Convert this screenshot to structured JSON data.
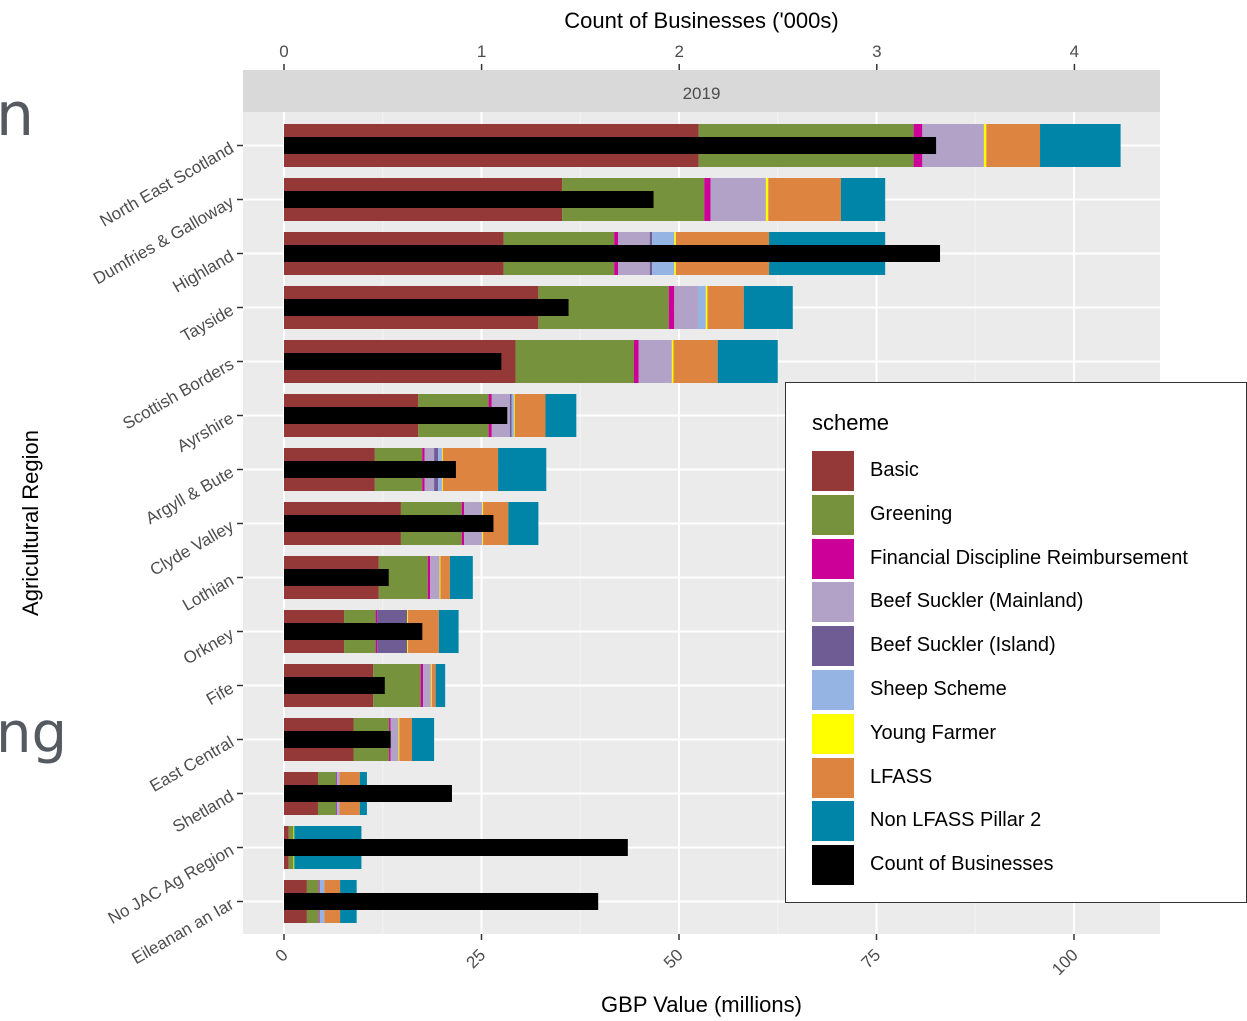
{
  "side_text": {
    "top_fragment": "n",
    "bottom_fragment": "ng"
  },
  "chart_data": {
    "type": "bar",
    "orientation": "horizontal-stacked",
    "facet_label": "2019",
    "xlabel": "GBP Value (millions)",
    "top_axis_label": "Count of Businesses ('000s)",
    "ylabel": "Agricultural Region",
    "xlim": [
      0,
      110
    ],
    "top_axis_lim": [
      0,
      4.4
    ],
    "xticks": [
      "0",
      "25",
      "50",
      "75",
      "100"
    ],
    "top_ticks": [
      "0",
      "1",
      "2",
      "3",
      "4"
    ],
    "grid": true,
    "legend_position": "right",
    "legend_title": "scheme",
    "categories": [
      "North East Scotland",
      "Dumfries & Galloway",
      "Highland",
      "Tayside",
      "Scottish Borders",
      "Ayrshire",
      "Argyll & Bute",
      "Clyde Valley",
      "Lothian",
      "Orkney",
      "Fife",
      "East Central",
      "Shetland",
      "No JAC Ag Region",
      "Eileanan an Iar"
    ],
    "series": [
      {
        "name": "Basic",
        "color": "#943838",
        "values": [
          52.5,
          35.2,
          27.8,
          32.2,
          29.3,
          17.0,
          11.5,
          14.8,
          12.0,
          7.6,
          11.3,
          8.8,
          4.3,
          0.6,
          2.9
        ]
      },
      {
        "name": "Greening",
        "color": "#77923c",
        "values": [
          27.2,
          18.0,
          14.0,
          16.5,
          15.0,
          8.9,
          6.0,
          7.7,
          6.2,
          4.0,
          6.0,
          4.5,
          2.3,
          0.6,
          1.5
        ]
      },
      {
        "name": "Financial Discipline Reimbursement",
        "color": "#cc0099",
        "values": [
          1.1,
          0.8,
          0.5,
          0.7,
          0.6,
          0.4,
          0.3,
          0.3,
          0.3,
          0.2,
          0.3,
          0.2,
          0.1,
          0.0,
          0.1
        ]
      },
      {
        "name": "Beef Suckler (Mainland)",
        "color": "#b3a2c7",
        "values": [
          7.8,
          7.0,
          4.0,
          3.0,
          4.2,
          2.3,
          1.2,
          2.3,
          1.2,
          0.0,
          1.0,
          1.0,
          0.0,
          0.0,
          0.0
        ]
      },
      {
        "name": "Beef Suckler (Island)",
        "color": "#705c94",
        "values": [
          0.0,
          0.0,
          0.3,
          0.0,
          0.0,
          0.2,
          0.5,
          0.0,
          0.0,
          3.8,
          0.0,
          0.0,
          0.0,
          0.0,
          0.0
        ]
      },
      {
        "name": "Sheep Scheme",
        "color": "#95b3e3",
        "values": [
          0.0,
          0.0,
          2.8,
          1.0,
          0.0,
          0.3,
          0.5,
          0.0,
          0.0,
          0.0,
          0.0,
          0.0,
          0.3,
          0.0,
          0.6
        ]
      },
      {
        "name": "Young Farmer",
        "color": "#ffff00",
        "values": [
          0.3,
          0.3,
          0.2,
          0.2,
          0.2,
          0.1,
          0.1,
          0.1,
          0.1,
          0.1,
          0.1,
          0.1,
          0.0,
          0.1,
          0.0
        ]
      },
      {
        "name": "LFASS",
        "color": "#dd8540",
        "values": [
          6.8,
          9.2,
          11.8,
          4.6,
          5.6,
          3.9,
          7.0,
          3.2,
          1.2,
          3.9,
          0.5,
          1.6,
          2.6,
          0.0,
          2.0
        ]
      },
      {
        "name": "Non LFASS Pillar 2",
        "color": "#0085a8",
        "values": [
          10.2,
          5.6,
          14.7,
          6.2,
          7.6,
          3.9,
          6.1,
          3.8,
          2.9,
          2.5,
          1.2,
          2.8,
          0.9,
          8.5,
          2.1
        ]
      }
    ],
    "count_series": {
      "name": "Count of Businesses",
      "color": "#000000",
      "values": [
        3.3,
        1.87,
        3.32,
        1.44,
        1.1,
        1.13,
        0.87,
        1.06,
        0.53,
        0.7,
        0.51,
        0.54,
        0.85,
        1.74,
        1.59
      ]
    }
  }
}
